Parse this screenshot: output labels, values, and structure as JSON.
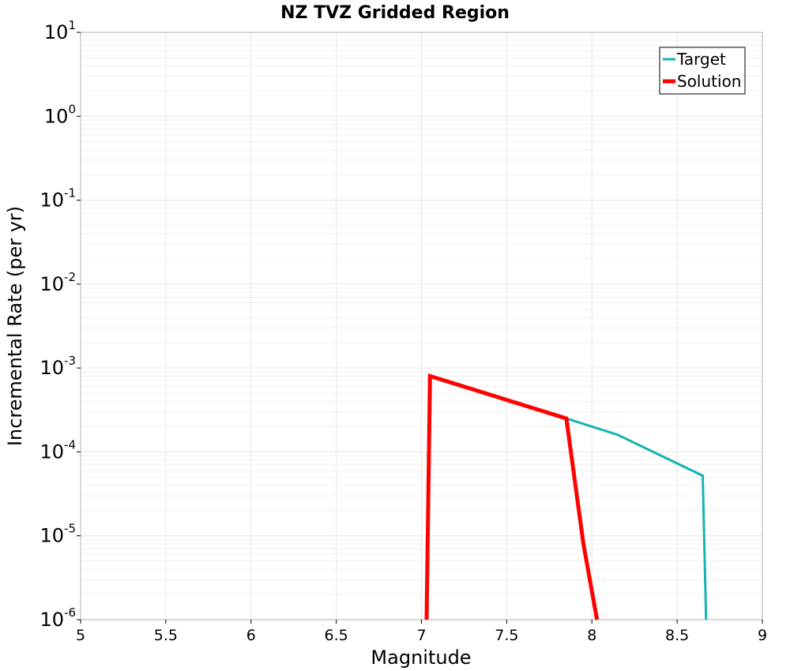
{
  "chart_data": {
    "type": "line",
    "title": "NZ TVZ Gridded Region",
    "xlabel": "Magnitude",
    "ylabel": "Incremental Rate (per yr)",
    "xlim": [
      5,
      9
    ],
    "ylim": [
      1e-06,
      10
    ],
    "yscale": "log",
    "grid": true,
    "legend_position": "top-right",
    "x_ticks": [
      {
        "value": 5,
        "label": "5"
      },
      {
        "value": 5.5,
        "label": "5.5"
      },
      {
        "value": 6,
        "label": "6"
      },
      {
        "value": 6.5,
        "label": "6.5"
      },
      {
        "value": 7,
        "label": "7"
      },
      {
        "value": 7.5,
        "label": "7.5"
      },
      {
        "value": 8,
        "label": "8"
      },
      {
        "value": 8.5,
        "label": "8.5"
      },
      {
        "value": 9,
        "label": "9"
      }
    ],
    "y_ticks": [
      {
        "value": 1e-06,
        "base": "10",
        "exp": "-6"
      },
      {
        "value": 1e-05,
        "base": "10",
        "exp": "-5"
      },
      {
        "value": 0.0001,
        "base": "10",
        "exp": "-4"
      },
      {
        "value": 0.001,
        "base": "10",
        "exp": "-3"
      },
      {
        "value": 0.01,
        "base": "10",
        "exp": "-2"
      },
      {
        "value": 0.1,
        "base": "10",
        "exp": "-1"
      },
      {
        "value": 1,
        "base": "10",
        "exp": "0"
      },
      {
        "value": 10,
        "base": "10",
        "exp": "1"
      }
    ],
    "series": [
      {
        "name": "Target",
        "color": "#16b3b3",
        "x": [
          7.05,
          7.85,
          8.15,
          8.65,
          8.67
        ],
        "y": [
          0.0008,
          0.00025,
          0.00016,
          5.2e-05,
          1e-06
        ]
      },
      {
        "name": "Solution",
        "color": "#ff0000",
        "x": [
          7.03,
          7.05,
          7.85,
          7.95,
          8.03
        ],
        "y": [
          1e-06,
          0.0008,
          0.00025,
          8e-06,
          1e-06
        ]
      }
    ]
  }
}
